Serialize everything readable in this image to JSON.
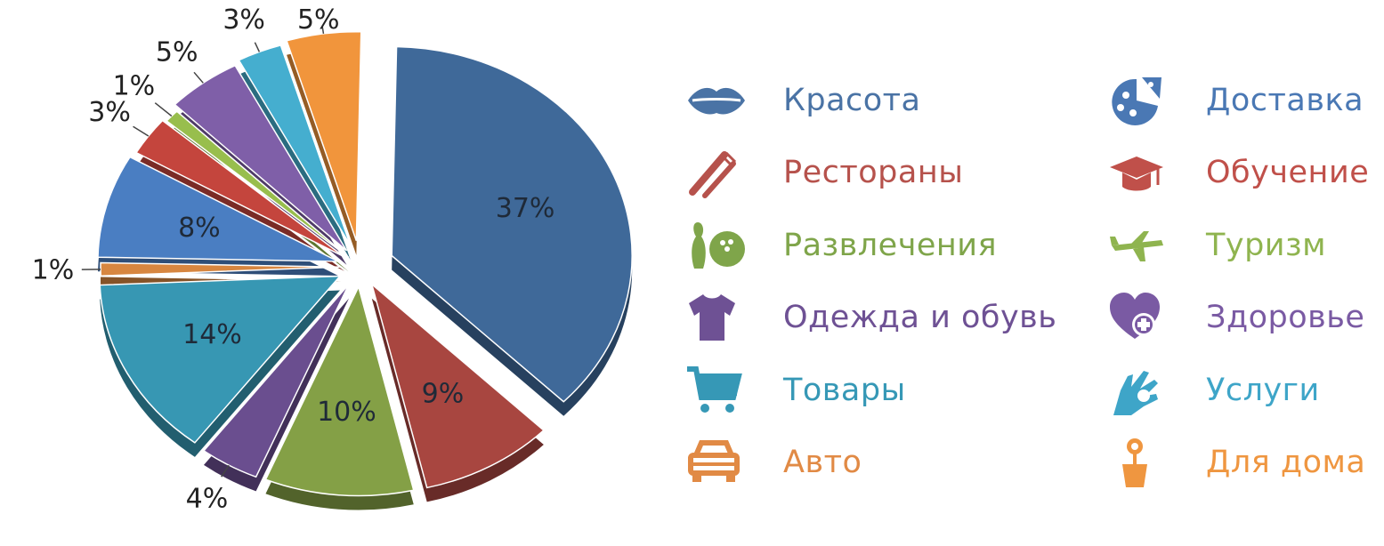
{
  "chart_data": {
    "type": "pie",
    "slices": [
      {
        "category": "Красота",
        "value": 37,
        "label": "37%",
        "color": "#3f6999"
      },
      {
        "category": "Рестораны",
        "value": 9,
        "label": "9%",
        "color": "#a84640"
      },
      {
        "category": "Развлечения",
        "value": 10,
        "label": "10%",
        "color": "#84a046"
      },
      {
        "category": "Одежда и обувь",
        "value": 4,
        "label": "4%",
        "color": "#6a4e8f"
      },
      {
        "category": "Товары",
        "value": 14,
        "label": "14%",
        "color": "#3797b3"
      },
      {
        "category": "Авто",
        "value": 1,
        "label": "1%",
        "color": "#d78640"
      },
      {
        "category": "Доставка",
        "value": 8,
        "label": "8%",
        "color": "#4a7ec2"
      },
      {
        "category": "Обучение",
        "value": 3,
        "label": "3%",
        "color": "#c4453d"
      },
      {
        "category": "Туризм",
        "value": 1,
        "label": "1%",
        "color": "#98be4d"
      },
      {
        "category": "Здоровье",
        "value": 5,
        "label": "5%",
        "color": "#7f5fa8"
      },
      {
        "category": "Услуги",
        "value": 3,
        "label": "3%",
        "color": "#45aecf"
      },
      {
        "category": "Для дома",
        "value": 5,
        "label": "5%",
        "color": "#f1953c"
      }
    ]
  },
  "legend": {
    "column1": [
      {
        "label": "Красота",
        "icon": "lips-icon",
        "color": "#4a73a5"
      },
      {
        "label": "Рестораны",
        "icon": "fork-knife-icon",
        "color": "#b6524c"
      },
      {
        "label": "Развлечения",
        "icon": "bowling-icon",
        "color": "#7fa54a"
      },
      {
        "label": "Одежда и обувь",
        "icon": "tshirt-icon",
        "color": "#6e5194"
      },
      {
        "label": "Товары",
        "icon": "cart-icon",
        "color": "#3698b6"
      },
      {
        "label": "Авто",
        "icon": "car-icon",
        "color": "#e18a45"
      }
    ],
    "column2": [
      {
        "label": "Доставка",
        "icon": "pizza-icon",
        "color": "#4a78b4"
      },
      {
        "label": "Обучение",
        "icon": "graduation-cap-icon",
        "color": "#c0504a"
      },
      {
        "label": "Туризм",
        "icon": "airplane-icon",
        "color": "#8fb44f"
      },
      {
        "label": "Здоровье",
        "icon": "heart-plus-icon",
        "color": "#7a5aa3"
      },
      {
        "label": "Услуги",
        "icon": "hand-ok-icon",
        "color": "#3ea5c8"
      },
      {
        "label": "Для дома",
        "icon": "flower-pot-icon",
        "color": "#ef9640"
      }
    ]
  }
}
